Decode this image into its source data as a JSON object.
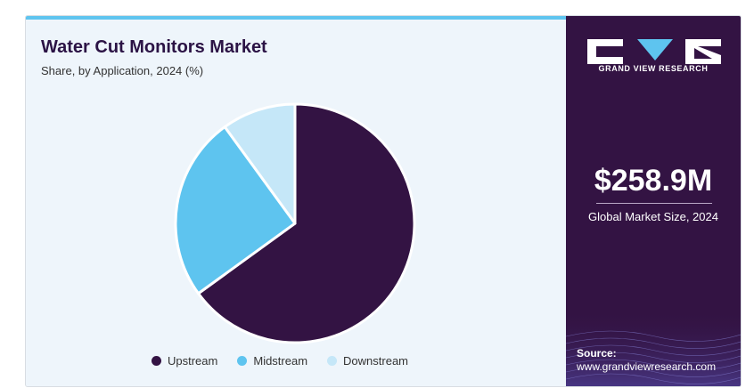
{
  "header": {
    "title": "Water Cut Monitors Market",
    "subtitle": "Share, by Application, 2024 (%)"
  },
  "chart_data": {
    "type": "pie",
    "categories": [
      "Upstream",
      "Midstream",
      "Downstream"
    ],
    "values": [
      65,
      25,
      10
    ],
    "colors": [
      "#331343",
      "#5ec4ef",
      "#c5e7f8"
    ],
    "legend_position": "bottom"
  },
  "sidebar": {
    "brand": "GRAND VIEW RESEARCH",
    "market_size": "$258.9M",
    "market_size_label": "Global Market Size, 2024",
    "source_label": "Source:",
    "source_url": "www.grandviewresearch.com"
  }
}
